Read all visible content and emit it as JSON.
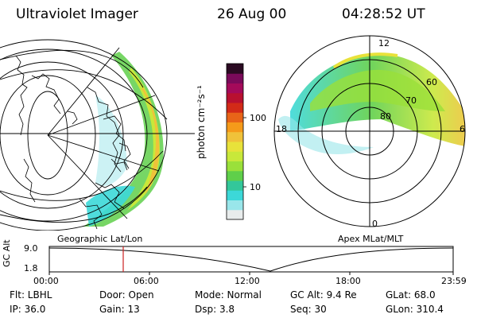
{
  "header": {
    "instrument": "Ultraviolet Imager",
    "date": "26 Aug 00",
    "time": "04:28:52 UT"
  },
  "colorbar": {
    "unit_label": "photon cm⁻²s⁻¹",
    "ticks": [
      "100",
      "10"
    ],
    "colors": [
      "#e8ecec",
      "#99e6ea",
      "#3cd8d8",
      "#33c79a",
      "#5fcf4a",
      "#9ae03a",
      "#c8e83a",
      "#e8e23a",
      "#f0c23a",
      "#f59a1a",
      "#e86418",
      "#d22a18",
      "#b81030",
      "#a40a5a",
      "#7a0a5a",
      "#2a0a22"
    ]
  },
  "left_map": {
    "label": "Geographic Lat/Lon"
  },
  "polar_plot": {
    "label": "Apex MLat/MLT",
    "mlt_labels": {
      "top": "12",
      "left": "18",
      "right": "6",
      "bottom": "0"
    },
    "lat_labels": [
      "80",
      "70",
      "60"
    ]
  },
  "timeline": {
    "y_label": "GC Alt",
    "y_ticks": [
      "9.0",
      "1.8"
    ],
    "x_ticks": [
      "00:00",
      "06:00",
      "12:00",
      "18:00",
      "23:59"
    ],
    "marker_color": "#cc2020"
  },
  "info": {
    "flt": "Flt: LBHL",
    "ip": "IP: 36.0",
    "door": "Door: Open",
    "gain": "Gain: 13",
    "mode": "Mode: Normal",
    "dsp": "Dsp:    3.8",
    "gc_alt": "GC Alt: 9.4 Re",
    "seq": "Seq: 30",
    "glat": "GLat:  68.0",
    "glon": "GLon: 310.4"
  }
}
